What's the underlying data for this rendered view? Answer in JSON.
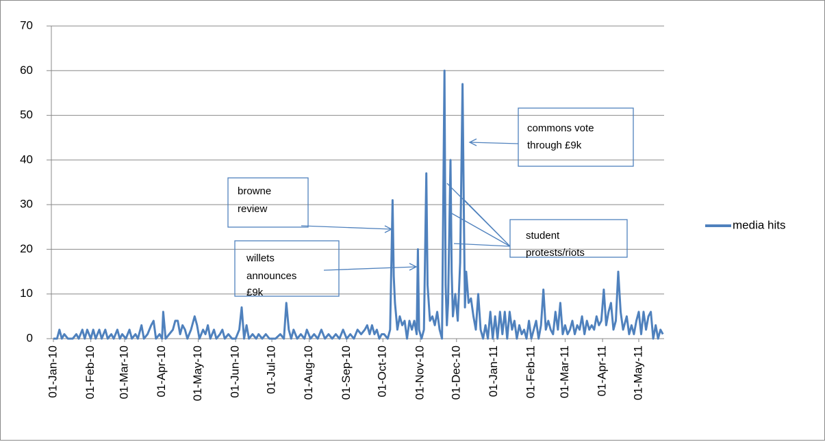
{
  "chart_data": {
    "type": "line",
    "x": [
      "2010-01-01",
      "2010-01-04",
      "2010-01-06",
      "2010-01-08",
      "2010-01-10",
      "2010-01-13",
      "2010-01-17",
      "2010-01-20",
      "2010-01-22",
      "2010-01-25",
      "2010-01-27",
      "2010-01-29",
      "2010-02-01",
      "2010-02-03",
      "2010-02-05",
      "2010-02-08",
      "2010-02-10",
      "2010-02-13",
      "2010-02-15",
      "2010-02-18",
      "2010-02-20",
      "2010-02-23",
      "2010-02-25",
      "2010-02-27",
      "2010-03-02",
      "2010-03-05",
      "2010-03-07",
      "2010-03-10",
      "2010-03-12",
      "2010-03-15",
      "2010-03-17",
      "2010-03-20",
      "2010-03-23",
      "2010-03-25",
      "2010-03-27",
      "2010-03-30",
      "2010-04-01",
      "2010-04-02",
      "2010-04-04",
      "2010-04-07",
      "2010-04-10",
      "2010-04-12",
      "2010-04-14",
      "2010-04-16",
      "2010-04-18",
      "2010-04-20",
      "2010-04-22",
      "2010-04-25",
      "2010-04-28",
      "2010-04-30",
      "2010-05-02",
      "2010-05-05",
      "2010-05-07",
      "2010-05-09",
      "2010-05-11",
      "2010-05-14",
      "2010-05-16",
      "2010-05-19",
      "2010-05-21",
      "2010-05-23",
      "2010-05-26",
      "2010-05-29",
      "2010-06-01",
      "2010-06-04",
      "2010-06-06",
      "2010-06-08",
      "2010-06-10",
      "2010-06-12",
      "2010-06-15",
      "2010-06-18",
      "2010-06-20",
      "2010-06-23",
      "2010-06-26",
      "2010-06-29",
      "2010-07-01",
      "2010-07-04",
      "2010-07-08",
      "2010-07-11",
      "2010-07-13",
      "2010-07-15",
      "2010-07-17",
      "2010-07-19",
      "2010-07-22",
      "2010-07-25",
      "2010-07-28",
      "2010-07-30",
      "2010-08-02",
      "2010-08-05",
      "2010-08-08",
      "2010-08-11",
      "2010-08-14",
      "2010-08-17",
      "2010-08-20",
      "2010-08-23",
      "2010-08-26",
      "2010-08-29",
      "2010-09-01",
      "2010-09-04",
      "2010-09-07",
      "2010-09-10",
      "2010-09-13",
      "2010-09-16",
      "2010-09-18",
      "2010-09-20",
      "2010-09-22",
      "2010-09-24",
      "2010-09-26",
      "2010-09-28",
      "2010-09-30",
      "2010-10-02",
      "2010-10-05",
      "2010-10-07",
      "2010-10-09",
      "2010-10-10",
      "2010-10-11",
      "2010-10-13",
      "2010-10-15",
      "2010-10-17",
      "2010-10-19",
      "2010-10-21",
      "2010-10-23",
      "2010-10-25",
      "2010-10-27",
      "2010-10-29",
      "2010-10-30",
      "2010-10-31",
      "2010-11-02",
      "2010-11-04",
      "2010-11-06",
      "2010-11-07",
      "2010-11-09",
      "2010-11-11",
      "2010-11-13",
      "2010-11-15",
      "2010-11-17",
      "2010-11-19",
      "2010-11-21",
      "2010-11-22",
      "2010-11-23",
      "2010-11-24",
      "2010-11-26",
      "2010-11-27",
      "2010-11-28",
      "2010-11-30",
      "2010-12-02",
      "2010-12-04",
      "2010-12-06",
      "2010-12-07",
      "2010-12-08",
      "2010-12-09",
      "2010-12-11",
      "2010-12-13",
      "2010-12-15",
      "2010-12-17",
      "2010-12-19",
      "2010-12-21",
      "2010-12-23",
      "2010-12-25",
      "2010-12-27",
      "2010-12-29",
      "2010-12-31",
      "2011-01-02",
      "2011-01-04",
      "2011-01-06",
      "2011-01-08",
      "2011-01-10",
      "2011-01-12",
      "2011-01-14",
      "2011-01-16",
      "2011-01-18",
      "2011-01-20",
      "2011-01-22",
      "2011-01-24",
      "2011-01-26",
      "2011-01-28",
      "2011-01-30",
      "2011-02-01",
      "2011-02-03",
      "2011-02-05",
      "2011-02-07",
      "2011-02-09",
      "2011-02-11",
      "2011-02-13",
      "2011-02-15",
      "2011-02-17",
      "2011-02-19",
      "2011-02-21",
      "2011-02-23",
      "2011-02-25",
      "2011-02-27",
      "2011-03-01",
      "2011-03-03",
      "2011-03-05",
      "2011-03-07",
      "2011-03-09",
      "2011-03-11",
      "2011-03-13",
      "2011-03-15",
      "2011-03-17",
      "2011-03-19",
      "2011-03-21",
      "2011-03-23",
      "2011-03-25",
      "2011-03-27",
      "2011-03-29",
      "2011-03-31",
      "2011-04-02",
      "2011-04-04",
      "2011-04-06",
      "2011-04-08",
      "2011-04-10",
      "2011-04-12",
      "2011-04-14",
      "2011-04-16",
      "2011-04-18",
      "2011-04-21",
      "2011-04-23",
      "2011-04-25",
      "2011-04-27",
      "2011-04-29",
      "2011-05-01",
      "2011-05-03",
      "2011-05-05",
      "2011-05-07",
      "2011-05-09",
      "2011-05-11",
      "2011-05-13",
      "2011-05-15",
      "2011-05-17",
      "2011-05-19",
      "2011-05-21"
    ],
    "series": [
      {
        "name": "media hits",
        "color": "#4f81bd",
        "values": [
          0,
          0,
          2,
          0,
          1,
          0,
          0,
          1,
          0,
          2,
          0,
          2,
          0,
          2,
          0,
          2,
          0,
          2,
          0,
          1,
          0,
          2,
          0,
          1,
          0,
          2,
          0,
          1,
          0,
          3,
          0,
          1,
          3,
          4,
          0,
          1,
          0,
          6,
          0,
          1,
          2,
          4,
          4,
          1,
          3,
          2,
          0,
          2,
          5,
          3,
          0,
          2,
          1,
          3,
          0,
          2,
          0,
          1,
          2,
          0,
          1,
          0,
          0,
          2,
          7,
          0,
          3,
          0,
          1,
          0,
          1,
          0,
          1,
          0,
          0,
          0,
          1,
          0,
          8,
          2,
          0,
          2,
          0,
          1,
          0,
          2,
          0,
          1,
          0,
          2,
          0,
          1,
          0,
          1,
          0,
          2,
          0,
          1,
          0,
          2,
          1,
          2,
          3,
          1,
          3,
          1,
          2,
          0,
          1,
          1,
          0,
          2,
          31,
          14,
          8,
          2,
          5,
          3,
          4,
          0,
          4,
          2,
          4,
          1,
          20,
          2,
          0,
          2,
          37,
          12,
          4,
          5,
          3,
          6,
          2,
          0,
          60,
          12,
          3,
          8,
          40,
          15,
          5,
          10,
          4,
          17,
          57,
          30,
          7,
          15,
          8,
          9,
          5,
          2,
          10,
          2,
          0,
          3,
          0,
          6,
          0,
          5,
          0,
          6,
          1,
          6,
          0,
          6,
          2,
          4,
          0,
          3,
          1,
          2,
          0,
          4,
          0,
          2,
          4,
          0,
          3,
          11,
          2,
          4,
          2,
          1,
          6,
          2,
          8,
          1,
          3,
          1,
          2,
          4,
          1,
          3,
          2,
          5,
          1,
          4,
          2,
          3,
          2,
          5,
          3,
          4,
          11,
          3,
          6,
          8,
          2,
          4,
          15,
          6,
          2,
          5,
          1,
          3,
          1,
          4,
          6,
          1,
          6,
          2,
          5,
          6,
          0,
          3,
          0,
          2,
          1
        ]
      }
    ],
    "xlim": [
      "2010-01-01",
      "2011-05-22"
    ],
    "xticks": [
      {
        "value": "2010-01-01",
        "label": "01-Jan-10"
      },
      {
        "value": "2010-02-01",
        "label": "01-Feb-10"
      },
      {
        "value": "2010-03-01",
        "label": "01-Mar-10"
      },
      {
        "value": "2010-04-01",
        "label": "01-Apr-10"
      },
      {
        "value": "2010-05-01",
        "label": "01-May-10"
      },
      {
        "value": "2010-06-01",
        "label": "01-Jun-10"
      },
      {
        "value": "2010-07-01",
        "label": "01-Jul-10"
      },
      {
        "value": "2010-08-01",
        "label": "01-Aug-10"
      },
      {
        "value": "2010-09-01",
        "label": "01-Sep-10"
      },
      {
        "value": "2010-10-01",
        "label": "01-Oct-10"
      },
      {
        "value": "2010-11-01",
        "label": "01-Nov-10"
      },
      {
        "value": "2010-12-01",
        "label": "01-Dec-10"
      },
      {
        "value": "2011-01-01",
        "label": "01-Jan-11"
      },
      {
        "value": "2011-02-01",
        "label": "01-Feb-11"
      },
      {
        "value": "2011-03-01",
        "label": "01-Mar-11"
      },
      {
        "value": "2011-04-01",
        "label": "01-Apr-11"
      },
      {
        "value": "2011-05-01",
        "label": "01-May-11"
      }
    ],
    "ylim": [
      0,
      70
    ],
    "yticks": [
      0,
      10,
      20,
      30,
      40,
      50,
      60,
      70
    ],
    "grid": true,
    "legend": "right",
    "annotations": [
      {
        "lines": [
          "browne",
          "review"
        ]
      },
      {
        "lines": [
          "willets",
          "announces",
          "£9k"
        ]
      },
      {
        "lines": [
          "commons vote",
          "through £9k"
        ]
      },
      {
        "lines": [
          "student",
          "protests/riots"
        ]
      }
    ]
  }
}
